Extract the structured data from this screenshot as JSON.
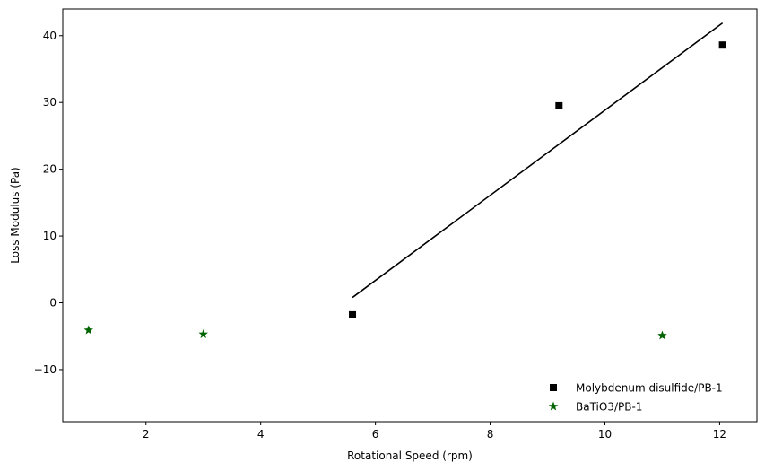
{
  "chart_data": {
    "type": "scatter",
    "title": "",
    "xlabel": "Rotational Speed (rpm)",
    "ylabel": "Loss Modulus (Pa)",
    "xlim": [
      0.55,
      12.65
    ],
    "ylim": [
      -17.8,
      44.0
    ],
    "xticks": [
      2,
      4,
      6,
      8,
      10,
      12
    ],
    "yticks": [
      -10,
      0,
      10,
      20,
      30,
      40
    ],
    "grid": false,
    "legend_position": "lower-right",
    "series": [
      {
        "name": "Molybdenum disulfide/PB-1",
        "marker": "square",
        "color": "#000000",
        "points": [
          [
            5.6,
            -1.8
          ],
          [
            9.2,
            29.5
          ],
          [
            12.05,
            38.6
          ]
        ]
      },
      {
        "name": "BaTiO3/PB-1",
        "marker": "star",
        "color": "#006400",
        "points": [
          [
            1.0,
            -4.1
          ],
          [
            3.0,
            -4.7
          ],
          [
            11.0,
            -4.9
          ]
        ]
      }
    ],
    "fit_line": {
      "series": "Molybdenum disulfide/PB-1",
      "color": "#000000",
      "x": [
        5.6,
        12.05
      ],
      "y": [
        0.8,
        41.9
      ]
    }
  }
}
